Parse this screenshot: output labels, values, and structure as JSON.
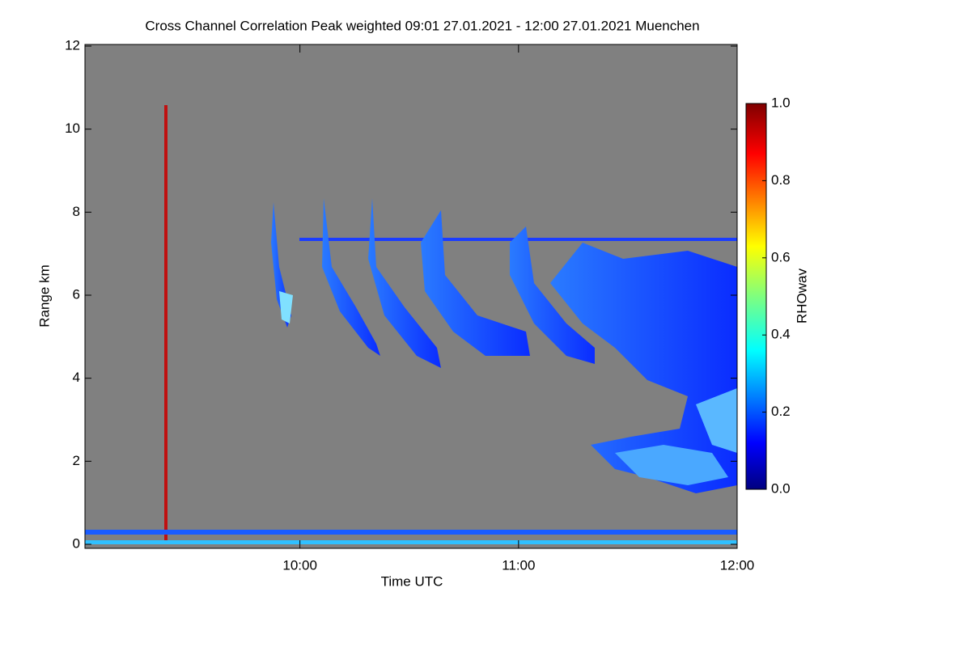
{
  "chart_data": {
    "type": "heatmap",
    "title": "Cross Channel Correlation Peak weighted   09:01 27.01.2021 - 12:00 27.01.2021 Muenchen",
    "x_label": "Time UTC",
    "y_label": "Range km",
    "xlim": [
      9.0167,
      12.0
    ],
    "xticks": [
      {
        "value": 10,
        "label": "10:00"
      },
      {
        "value": 11,
        "label": "11:00"
      },
      {
        "value": 12,
        "label": "12:00"
      }
    ],
    "ylim": [
      0,
      12
    ],
    "yticks": [
      0,
      2,
      4,
      6,
      8,
      10,
      12
    ],
    "colorbar_label": "RHOwav",
    "clim": [
      0,
      1
    ],
    "cticks": [
      {
        "value": 0,
        "label": "0.0"
      },
      0.2,
      0.4,
      0.6,
      0.8,
      {
        "value": 1,
        "label": "1.0"
      }
    ]
  }
}
